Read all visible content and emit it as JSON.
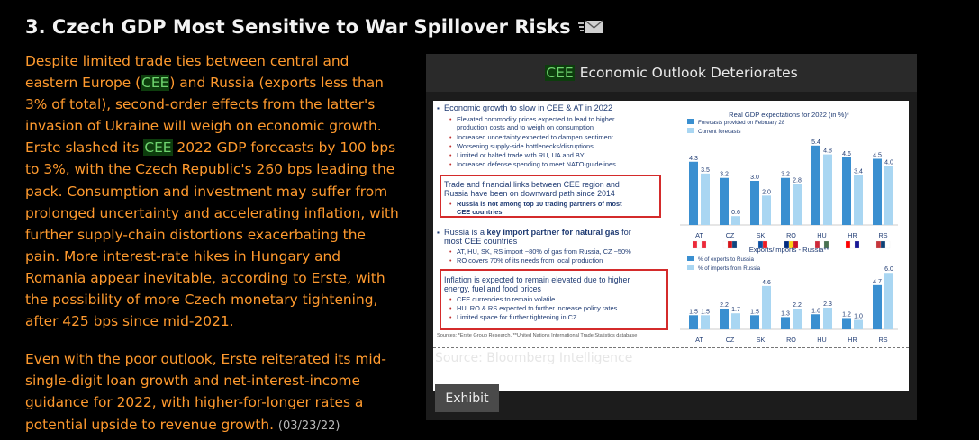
{
  "header": {
    "title": "3. Czech GDP Most Sensitive to War Spillover Risks",
    "mail_icon": "mail-icon"
  },
  "body_text": {
    "p1_a": "Despite limited trade ties between central and eastern Europe (",
    "cee1": "CEE",
    "p1_b": ") and Russia (exports less than 3% of total), second-order effects from the latter's invasion of Ukraine will weigh on economic growth. Erste slashed its ",
    "cee2": "CEE",
    "p1_c": " 2022 GDP forecasts by 100 bps to 3%, with the Czech Republic's 260 bps leading the pack. Consumption and investment may suffer from prolonged uncertainty and accelerating inflation, with further supply-chain distortions exacerbating the pain. More interest-rate hikes in Hungary and Romania appear inevitable, according to Erste, with the possibility of more Czech monetary tightening, after 425 bps since mid-2021.",
    "p2": "Even with the poor outlook, Erste reiterated its mid-single-digit loan growth and net-interest-income guidance for 2022, with higher-for-longer rates a potential upside to revenue growth.",
    "date": "(03/23/22)"
  },
  "panel": {
    "title_cee": "CEE",
    "title_rest": "Economic Outlook Deteriorates",
    "source": "Source: Bloomberg Intelligence",
    "exhibit_label": "Exhibit"
  },
  "slide": {
    "bullets_1_head": "Economic growth to slow in CEE & AT in 2022",
    "bullets_1": [
      "Elevated commodity prices expected to lead to higher",
      "production costs and to weigh on consumption",
      "Increased uncertainty expected to dampen sentiment",
      "Worsening supply-side bottlenecks/disruptions",
      "Limited or halted trade with RU, UA and BY",
      "Increased defense spending to meet NATO guidelines"
    ],
    "box1_line1": "Trade and financial links between CEE region and",
    "box1_line2": "Russia have been on downward path since 2014",
    "box1_sub1": "Russia is not among top 10 trading partners of most",
    "box1_sub2": "CEE countries",
    "bullets_3_line1a": "Russia is a ",
    "bullets_3_line1b": "key import partner for natural gas",
    "bullets_3_line1c": " for",
    "bullets_3_line2": "most CEE countries",
    "bullets_3": [
      "AT, HU, SK, RS import ~80% of gas from Russia, CZ ~50%",
      "RO covers 70% of its needs from local production"
    ],
    "box2_line1": "Inflation is expected to remain elevated due to higher",
    "box2_line2": "energy, fuel and food prices",
    "box2_subs": [
      "CEE currencies to remain volatile",
      "HU, RO & RS expected to further increase policy rates",
      "Limited space for further tightening in CZ"
    ],
    "sources": "Sources: *Erste Group Research, **United Nations International Trade Statistics database"
  },
  "chart_data": [
    {
      "type": "bar",
      "title": "Real GDP expectations for 2022 (in %)*",
      "categories": [
        "AT",
        "CZ",
        "SK",
        "RO",
        "HU",
        "HR",
        "RS"
      ],
      "series": [
        {
          "name": "Forecasts provided on February 28",
          "values": [
            4.3,
            3.2,
            3.0,
            3.2,
            5.4,
            4.6,
            4.5
          ],
          "color": "#3a8fd0"
        },
        {
          "name": "Current forecasts",
          "values": [
            3.5,
            0.6,
            2.0,
            2.8,
            4.8,
            3.4,
            4.0
          ],
          "color": "#a9d6f2"
        }
      ],
      "ylim": [
        0,
        6
      ]
    },
    {
      "type": "bar",
      "title": "Exports/imports - Russia**",
      "categories": [
        "AT",
        "CZ",
        "SK",
        "RO",
        "HU",
        "HR",
        "RS"
      ],
      "series": [
        {
          "name": "% of exports to Russia",
          "values": [
            1.5,
            2.2,
            1.5,
            1.3,
            1.6,
            1.2,
            4.7
          ],
          "color": "#3a8fd0"
        },
        {
          "name": "% of imports from Russia",
          "values": [
            1.5,
            1.7,
            4.6,
            2.2,
            2.3,
            1.0,
            6.0
          ],
          "color": "#a9d6f2"
        }
      ],
      "ylim": [
        0,
        6.5
      ]
    }
  ]
}
